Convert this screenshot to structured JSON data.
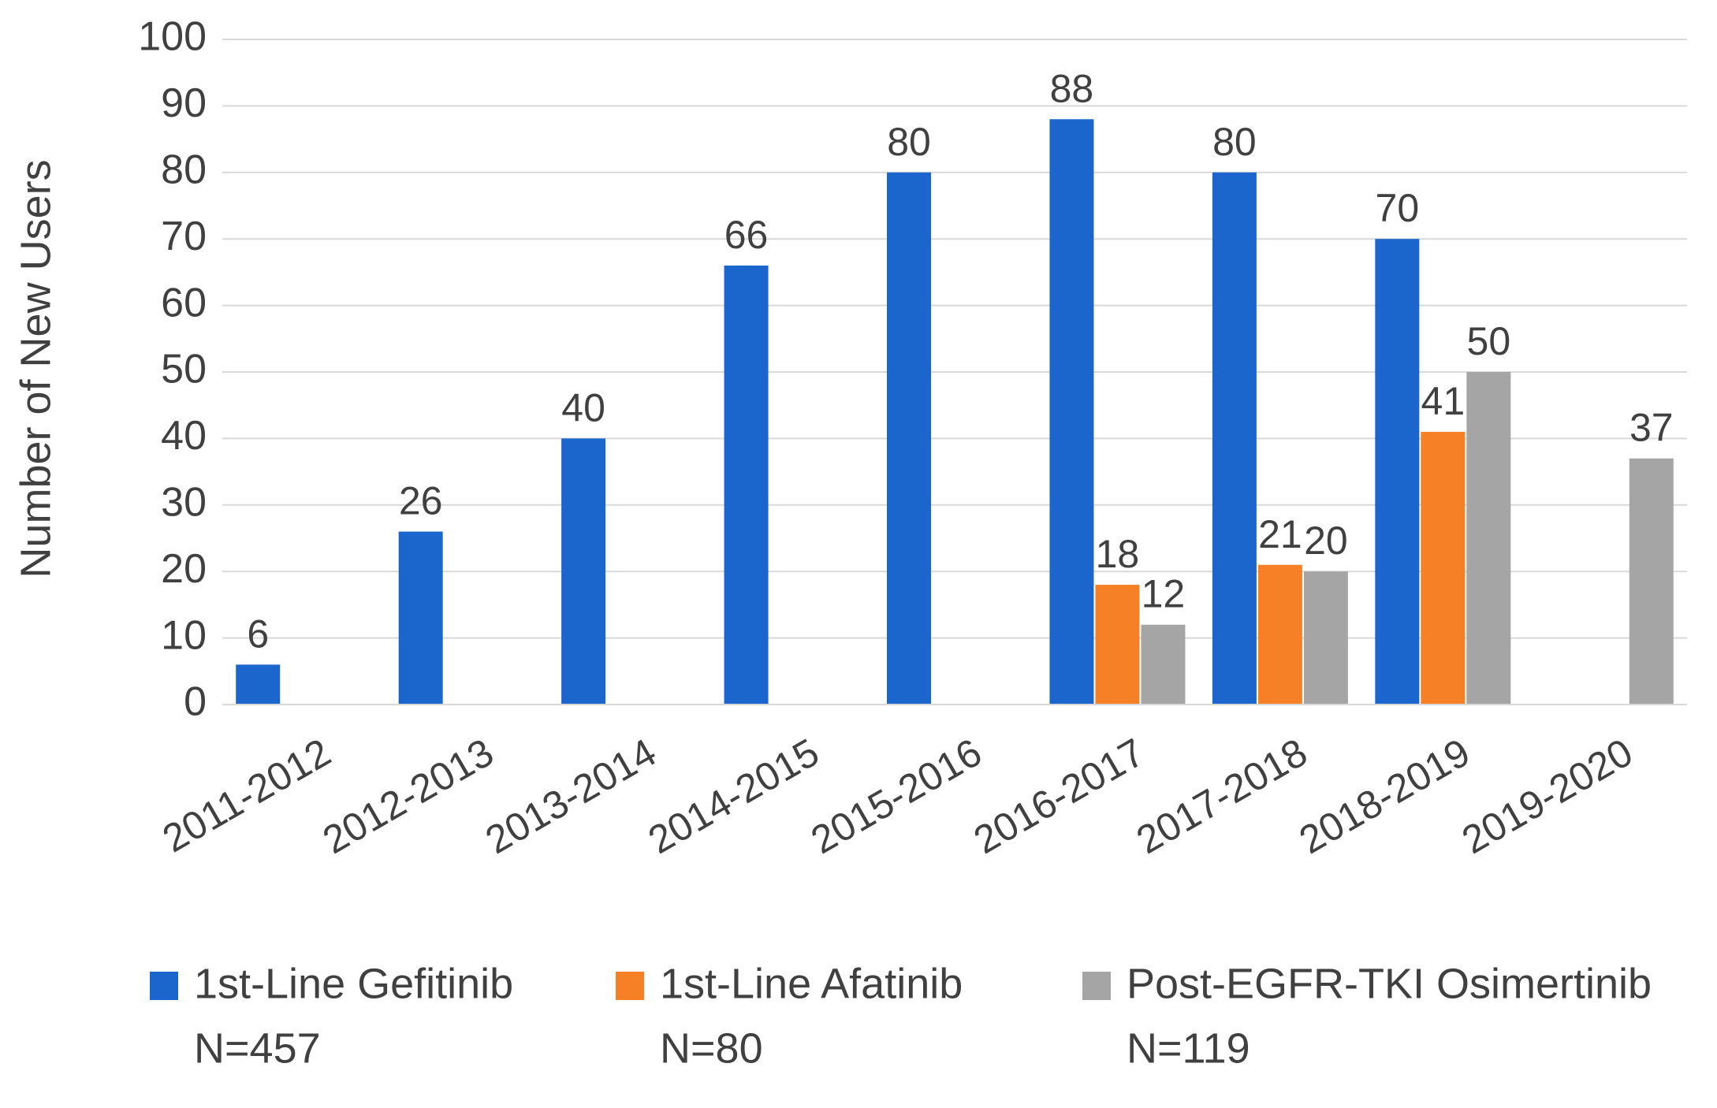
{
  "chart_data": {
    "type": "bar",
    "y_label": "Number of New Users",
    "categories": [
      "2011-2012",
      "2012-2013",
      "2013-2014",
      "2014-2015",
      "2015-2016",
      "2016-2017",
      "2017-2018",
      "2018-2019",
      "2019-2020"
    ],
    "series": [
      {
        "name": "1st-Line Gefitinib",
        "n_label": "N=457",
        "color": "#1a66cc",
        "values": [
          6,
          26,
          40,
          66,
          80,
          88,
          80,
          70,
          null
        ]
      },
      {
        "name": "1st-Line Afatinib",
        "n_label": "N=80",
        "color": "#f58025",
        "values": [
          null,
          null,
          null,
          null,
          null,
          18,
          21,
          41,
          null
        ]
      },
      {
        "name": "Post-EGFR-TKI Osimertinib",
        "n_label": "N=119",
        "color": "#a5a5a5",
        "values": [
          null,
          null,
          null,
          null,
          null,
          12,
          20,
          50,
          37
        ]
      }
    ],
    "ylim": [
      0,
      100
    ],
    "yticks": [
      0,
      10,
      20,
      30,
      40,
      50,
      60,
      70,
      80,
      90,
      100
    ],
    "grid": true,
    "legend": "bottom"
  }
}
